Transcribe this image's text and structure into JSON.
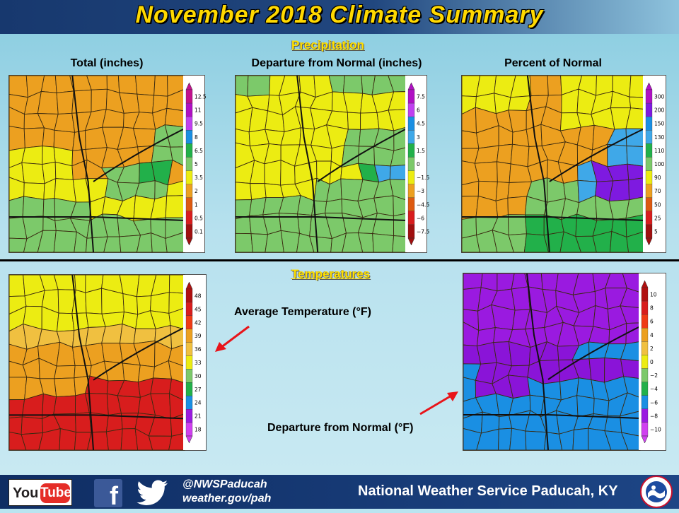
{
  "title": "November 2018 Climate Summary",
  "sections": {
    "precipitation": "Precipitation",
    "temperatures": "Temperatures"
  },
  "maps": {
    "precip_total": {
      "caption": "Total (inches)",
      "legend": [
        "12.5",
        "11",
        "9.5",
        "8",
        "6.5",
        "5",
        "3.5",
        "2",
        "1",
        "0.5",
        "0.1"
      ],
      "legend_colors": [
        "#c2118d",
        "#b010c4",
        "#c040f0",
        "#1a8fe3",
        "#22b04a",
        "#7cc96a",
        "#ecec12",
        "#eca020",
        "#dd5a10",
        "#d81d1d",
        "#a00f0f"
      ]
    },
    "precip_departure": {
      "caption": "Departure from Normal (inches)",
      "legend": [
        "7.5",
        "6",
        "4.5",
        "3",
        "1.5",
        "0",
        "−1.5",
        "−3",
        "−4.5",
        "−6",
        "−7.5"
      ],
      "legend_colors": [
        "#b010c4",
        "#c040f0",
        "#1a8fe3",
        "#3fa8e8",
        "#22b04a",
        "#7cc96a",
        "#ecec12",
        "#eca020",
        "#dd5a10",
        "#d81d1d",
        "#a00f0f"
      ]
    },
    "precip_percent": {
      "caption": "Percent of Normal",
      "legend": [
        "300",
        "200",
        "150",
        "130",
        "110",
        "100",
        "90",
        "70",
        "50",
        "25",
        "5"
      ],
      "legend_colors": [
        "#b010c4",
        "#7e1ae0",
        "#1a8fe3",
        "#3fa8e8",
        "#22b04a",
        "#7cc96a",
        "#ecec12",
        "#eca020",
        "#dd5a10",
        "#d81d1d",
        "#a00f0f"
      ]
    },
    "temp_average": {
      "caption": "Average Temperature (°F)",
      "legend": [
        "48",
        "45",
        "42",
        "39",
        "36",
        "33",
        "30",
        "27",
        "24",
        "21",
        "18"
      ],
      "legend_colors": [
        "#b01010",
        "#d81d1d",
        "#ef3b16",
        "#eca020",
        "#f0c040",
        "#ecec12",
        "#7cc96a",
        "#22b04a",
        "#1a8fe3",
        "#9a1ae0",
        "#d040f0"
      ]
    },
    "temp_departure": {
      "caption": "Departure from Normal (°F)",
      "legend": [
        "10",
        "8",
        "6",
        "4",
        "2",
        "0",
        "−2",
        "−4",
        "−6",
        "−8",
        "−10"
      ],
      "legend_colors": [
        "#b01010",
        "#d81d1d",
        "#ef3b16",
        "#eca020",
        "#f0c040",
        "#ecec12",
        "#7cc96a",
        "#22b04a",
        "#1a8fe3",
        "#9a1ae0",
        "#d040f0"
      ]
    }
  },
  "colors": {
    "title_text": "#ffd900",
    "section_heading": "#ffe100",
    "arrow": "#e8141a",
    "footer_bg": "#173b78"
  },
  "footer": {
    "youtube_you": "You",
    "youtube_tube": "Tube",
    "facebook_glyph": "f",
    "twitter_handle": "@NWSPaducah",
    "website": "weather.gov/pah",
    "office": "National Weather Service Paducah, KY",
    "icons": [
      "youtube-icon",
      "facebook-icon",
      "twitter-icon",
      "nws-logo"
    ]
  }
}
